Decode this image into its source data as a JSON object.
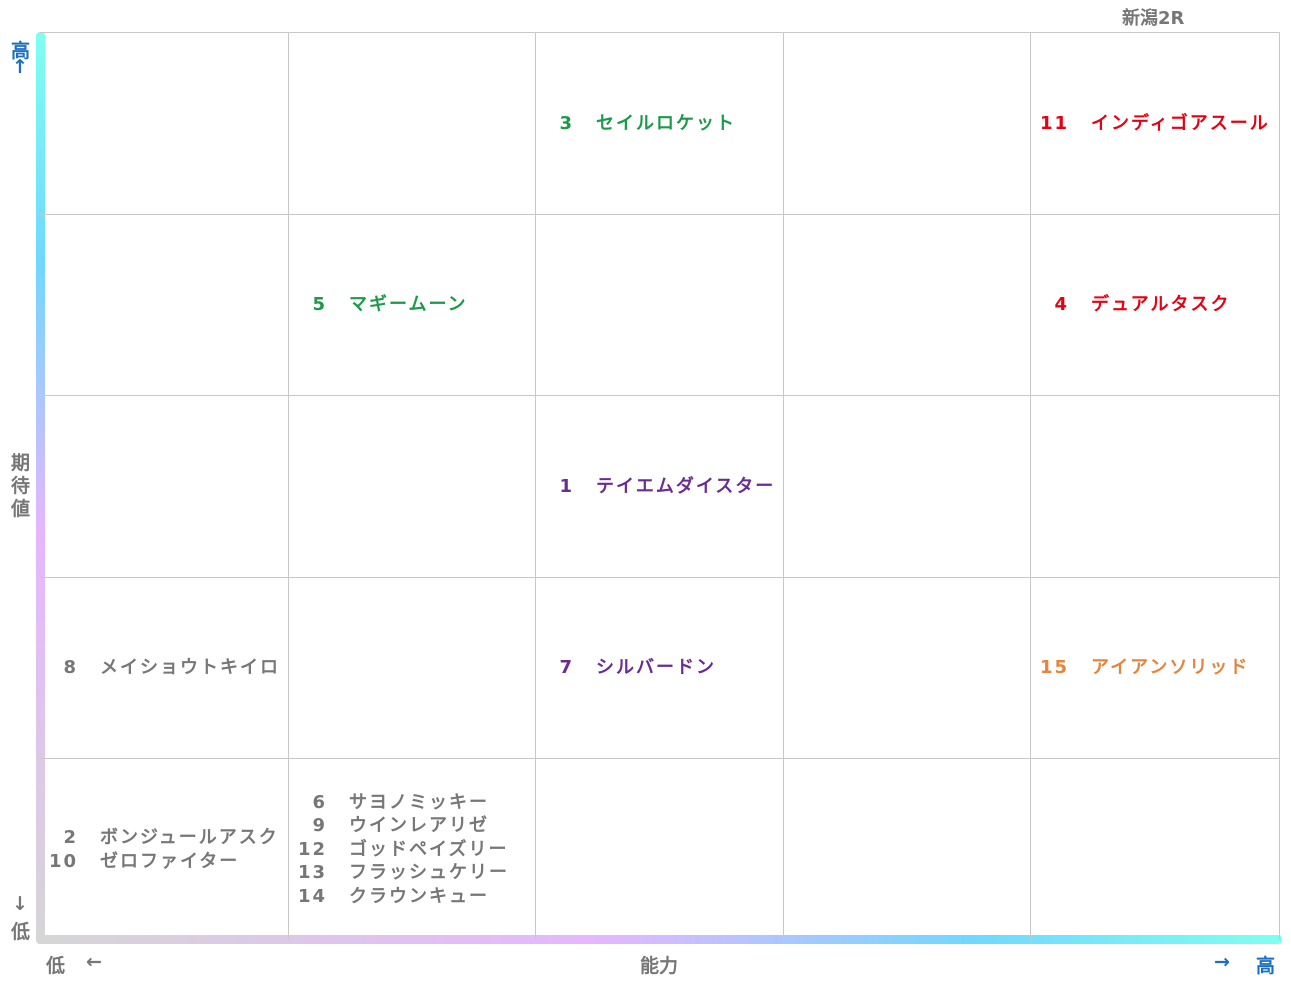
{
  "title": "新潟2R",
  "y_axis": {
    "high": "高",
    "high_arrow": "↑",
    "label": "期待値",
    "low_arrow": "↓",
    "low": "低"
  },
  "x_axis": {
    "low": "低",
    "low_arrow": "←",
    "label": "能力",
    "high_arrow": "→",
    "high": "高"
  },
  "grid": {
    "rows": [
      [
        [],
        [],
        [
          {
            "num": "3",
            "name": "セイルロケット",
            "color": "#1a9a4a"
          }
        ],
        [],
        [
          {
            "num": "11",
            "name": "インディゴアスール",
            "color": "#e60012"
          }
        ]
      ],
      [
        [],
        [
          {
            "num": "5",
            "name": "マギームーン",
            "color": "#1a9a4a"
          }
        ],
        [],
        [],
        [
          {
            "num": "4",
            "name": "デュアルタスク",
            "color": "#e60012"
          }
        ]
      ],
      [
        [],
        [],
        [
          {
            "num": "1",
            "name": "テイエムダイスター",
            "color": "#6b2c91"
          }
        ],
        [],
        []
      ],
      [
        [
          {
            "num": "8",
            "name": "メイショウトキイロ",
            "color": "#777777"
          }
        ],
        [],
        [
          {
            "num": "7",
            "name": "シルバードン",
            "color": "#6b2c91"
          }
        ],
        [],
        [
          {
            "num": "15",
            "name": "アイアンソリッド",
            "color": "#e5843c"
          }
        ]
      ],
      [
        [
          {
            "num": "2",
            "name": "ボンジュールアスク",
            "color": "#777777"
          },
          {
            "num": "10",
            "name": "ゼロファイター",
            "color": "#777777"
          }
        ],
        [
          {
            "num": "6",
            "name": "サヨノミッキー",
            "color": "#777777"
          },
          {
            "num": "9",
            "name": "ウインレアリゼ",
            "color": "#777777"
          },
          {
            "num": "12",
            "name": "ゴッドペイズリー",
            "color": "#777777"
          },
          {
            "num": "13",
            "name": "フラッシュケリー",
            "color": "#777777"
          },
          {
            "num": "14",
            "name": "クラウンキュー",
            "color": "#777777"
          }
        ],
        [],
        [],
        []
      ]
    ]
  }
}
